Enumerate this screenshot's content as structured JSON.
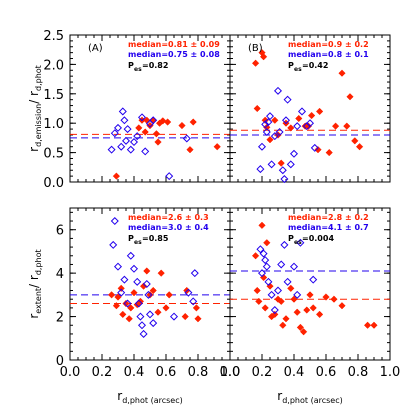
{
  "colors": {
    "red": "#ff2200",
    "blue": "#2200ee",
    "black": "#000000"
  },
  "chart_data": [
    {
      "type": "scatter",
      "panel": "A",
      "label": "(A)",
      "ylabel_main": "r",
      "ylabel_sub": "d,emission",
      "ylabel_div": "/ r",
      "ylabel_sub2": "d,phot",
      "xlabel": "",
      "xlim": [
        0.0,
        1.0
      ],
      "ylim": [
        0.0,
        2.5
      ],
      "xticks": [
        "0.0",
        "0.2",
        "0.4",
        "0.6",
        "0.8",
        "1.0"
      ],
      "yticks": [
        "0.0",
        "0.5",
        "1.0",
        "1.5",
        "2.0",
        "2.5"
      ],
      "show_xticklabels": false,
      "annotations": {
        "red": "median=0.81 ± 0.09",
        "blue": "median=0.75 ± 0.08",
        "p_main": "P",
        "p_sub": "es",
        "p_val": "=0.82"
      },
      "median_lines": {
        "red": 0.81,
        "blue": 0.75
      },
      "series": [
        {
          "name": "",
          "color": "red",
          "marker": "filled-diamond",
          "points": [
            [
              0.29,
              0.1
            ],
            [
              0.43,
              0.92
            ],
            [
              0.45,
              1.05
            ],
            [
              0.47,
              0.85
            ],
            [
              0.48,
              1.05
            ],
            [
              0.5,
              0.96
            ],
            [
              0.52,
              1.05
            ],
            [
              0.54,
              0.82
            ],
            [
              0.56,
              1.0
            ],
            [
              0.58,
              1.04
            ],
            [
              0.61,
              1.02
            ],
            [
              0.7,
              0.96
            ],
            [
              0.75,
              0.55
            ],
            [
              0.77,
              1.02
            ],
            [
              0.92,
              0.6
            ],
            [
              0.55,
              0.68
            ]
          ]
        },
        {
          "name": "",
          "color": "blue",
          "marker": "open-diamond",
          "points": [
            [
              0.26,
              0.55
            ],
            [
              0.28,
              0.83
            ],
            [
              0.3,
              0.92
            ],
            [
              0.32,
              0.6
            ],
            [
              0.33,
              1.2
            ],
            [
              0.34,
              1.05
            ],
            [
              0.35,
              0.7
            ],
            [
              0.36,
              0.9
            ],
            [
              0.38,
              0.55
            ],
            [
              0.4,
              0.68
            ],
            [
              0.42,
              0.78
            ],
            [
              0.45,
              1.1
            ],
            [
              0.47,
              0.52
            ],
            [
              0.5,
              0.99
            ],
            [
              0.52,
              1.05
            ],
            [
              0.62,
              0.1
            ],
            [
              0.73,
              0.74
            ]
          ]
        }
      ]
    },
    {
      "type": "scatter",
      "panel": "B",
      "label": "(B)",
      "ylabel_main": "",
      "ylabel_sub": "",
      "ylabel_div": "",
      "ylabel_sub2": "",
      "xlabel": "",
      "xlim": [
        0.0,
        1.0
      ],
      "ylim": [
        0.0,
        2.5
      ],
      "xticks": [
        "0.0",
        "0.2",
        "0.4",
        "0.6",
        "0.8",
        "1.0"
      ],
      "yticks": [
        "0.0",
        "0.5",
        "1.0",
        "1.5",
        "2.0",
        "2.5"
      ],
      "show_xticklabels": false,
      "show_yticklabels": false,
      "annotations": {
        "red": "median=0.9 ± 0.2",
        "blue": "median=0.8 ± 0.1",
        "p_main": "P",
        "p_sub": "es",
        "p_val": "=0.42"
      },
      "median_lines": {
        "red": 0.88,
        "blue": 0.8
      },
      "series": [
        {
          "name": "",
          "color": "red",
          "marker": "filled-diamond",
          "points": [
            [
              0.16,
              2.02
            ],
            [
              0.17,
              1.25
            ],
            [
              0.2,
              2.2
            ],
            [
              0.21,
              2.13
            ],
            [
              0.22,
              1.05
            ],
            [
              0.23,
              0.93
            ],
            [
              0.25,
              0.72
            ],
            [
              0.28,
              1.05
            ],
            [
              0.3,
              0.8
            ],
            [
              0.32,
              0.32
            ],
            [
              0.35,
              1.0
            ],
            [
              0.38,
              0.92
            ],
            [
              0.43,
              1.08
            ],
            [
              0.47,
              0.95
            ],
            [
              0.49,
              0.95
            ],
            [
              0.51,
              1.13
            ],
            [
              0.55,
              0.55
            ],
            [
              0.56,
              1.2
            ],
            [
              0.62,
              0.5
            ],
            [
              0.66,
              0.95
            ],
            [
              0.7,
              1.85
            ],
            [
              0.73,
              0.95
            ],
            [
              0.75,
              1.45
            ],
            [
              0.78,
              0.7
            ],
            [
              0.81,
              0.6
            ]
          ]
        },
        {
          "name": "",
          "color": "blue",
          "marker": "open-diamond",
          "points": [
            [
              0.19,
              0.22
            ],
            [
              0.2,
              0.6
            ],
            [
              0.22,
              0.98
            ],
            [
              0.23,
              0.85
            ],
            [
              0.24,
              1.02
            ],
            [
              0.25,
              1.12
            ],
            [
              0.26,
              0.3
            ],
            [
              0.28,
              0.78
            ],
            [
              0.3,
              1.55
            ],
            [
              0.31,
              0.85
            ],
            [
              0.33,
              0.2
            ],
            [
              0.34,
              0.05
            ],
            [
              0.35,
              1.05
            ],
            [
              0.36,
              1.4
            ],
            [
              0.38,
              0.3
            ],
            [
              0.4,
              0.48
            ],
            [
              0.42,
              0.95
            ],
            [
              0.45,
              1.2
            ],
            [
              0.48,
              0.95
            ],
            [
              0.5,
              1.0
            ],
            [
              0.53,
              0.58
            ]
          ]
        }
      ]
    },
    {
      "type": "scatter",
      "panel": "C",
      "label": "",
      "ylabel_main": "r",
      "ylabel_sub": "extent",
      "ylabel_div": "/ r",
      "ylabel_sub2": "d,phot",
      "xlabel_main": "r",
      "xlabel_sub": "d,phot",
      "xlabel_unit": "(arcsec)",
      "xlim": [
        0.0,
        1.0
      ],
      "ylim": [
        0,
        7
      ],
      "xticks": [
        "0.0",
        "0.2",
        "0.4",
        "0.6",
        "0.8",
        "1.0"
      ],
      "yticks": [
        "0",
        "2",
        "4",
        "6"
      ],
      "show_xticklabels": true,
      "annotations": {
        "red": "median=2.6 ± 0.3",
        "blue": "median=3.0 ± 0.4",
        "p_main": "P",
        "p_sub": "es",
        "p_val": "=0.85"
      },
      "median_lines": {
        "red": 2.6,
        "blue": 3.0
      },
      "series": [
        {
          "name": "",
          "color": "red",
          "marker": "filled-diamond",
          "points": [
            [
              0.26,
              3.0
            ],
            [
              0.29,
              2.5
            ],
            [
              0.3,
              2.9
            ],
            [
              0.32,
              3.3
            ],
            [
              0.33,
              2.1
            ],
            [
              0.35,
              2.6
            ],
            [
              0.37,
              1.9
            ],
            [
              0.38,
              2.4
            ],
            [
              0.4,
              3.1
            ],
            [
              0.42,
              2.55
            ],
            [
              0.44,
              2.7
            ],
            [
              0.46,
              3.4
            ],
            [
              0.48,
              4.1
            ],
            [
              0.5,
              3.0
            ],
            [
              0.52,
              3.2
            ],
            [
              0.55,
              2.2
            ],
            [
              0.57,
              4.0
            ],
            [
              0.6,
              2.4
            ],
            [
              0.62,
              3.0
            ],
            [
              0.72,
              2.0
            ],
            [
              0.73,
              3.2
            ],
            [
              0.79,
              2.4
            ],
            [
              0.8,
              1.9
            ]
          ]
        },
        {
          "name": "",
          "color": "blue",
          "marker": "open-diamond",
          "points": [
            [
              0.27,
              5.3
            ],
            [
              0.28,
              6.4
            ],
            [
              0.3,
              4.3
            ],
            [
              0.32,
              3.1
            ],
            [
              0.34,
              3.7
            ],
            [
              0.36,
              2.6
            ],
            [
              0.38,
              4.8
            ],
            [
              0.4,
              4.2
            ],
            [
              0.42,
              3.6
            ],
            [
              0.43,
              2.6
            ],
            [
              0.44,
              2.0
            ],
            [
              0.45,
              1.6
            ],
            [
              0.46,
              1.2
            ],
            [
              0.48,
              3.5
            ],
            [
              0.49,
              3.0
            ],
            [
              0.5,
              2.1
            ],
            [
              0.52,
              1.7
            ],
            [
              0.65,
              2.0
            ],
            [
              0.74,
              3.1
            ],
            [
              0.77,
              2.7
            ],
            [
              0.78,
              4.0
            ]
          ]
        }
      ]
    },
    {
      "type": "scatter",
      "panel": "D",
      "label": "",
      "ylabel_main": "",
      "ylabel_sub": "",
      "ylabel_div": "",
      "ylabel_sub2": "",
      "xlabel_main": "r",
      "xlabel_sub": "d,phot",
      "xlabel_unit": "(arcsec)",
      "xlim": [
        0.0,
        1.0
      ],
      "ylim": [
        0,
        7
      ],
      "xticks": [
        "0.0",
        "0.2",
        "0.4",
        "0.6",
        "0.8",
        "1.0"
      ],
      "yticks": [
        "0",
        "2",
        "4",
        "6"
      ],
      "show_xticklabels": true,
      "show_yticklabels": false,
      "annotations": {
        "red": "median=2.8 ± 0.2",
        "blue": "median=4.1 ± 0.7",
        "p_main": "P",
        "p_sub": "es",
        "p_val": "=0.004"
      },
      "median_lines": {
        "red": 2.8,
        "blue": 4.1
      },
      "series": [
        {
          "name": "",
          "color": "red",
          "marker": "filled-diamond",
          "points": [
            [
              0.16,
              4.8
            ],
            [
              0.17,
              3.2
            ],
            [
              0.18,
              2.7
            ],
            [
              0.2,
              6.2
            ],
            [
              0.21,
              3.8
            ],
            [
              0.22,
              2.4
            ],
            [
              0.23,
              5.4
            ],
            [
              0.25,
              3.4
            ],
            [
              0.26,
              2.0
            ],
            [
              0.28,
              2.1
            ],
            [
              0.3,
              2.8
            ],
            [
              0.32,
              2.7
            ],
            [
              0.33,
              1.6
            ],
            [
              0.35,
              1.9
            ],
            [
              0.38,
              3.3
            ],
            [
              0.4,
              2.8
            ],
            [
              0.42,
              2.2
            ],
            [
              0.44,
              1.5
            ],
            [
              0.46,
              1.3
            ],
            [
              0.48,
              2.3
            ],
            [
              0.5,
              3.0
            ],
            [
              0.52,
              2.4
            ],
            [
              0.56,
              2.1
            ],
            [
              0.6,
              2.9
            ],
            [
              0.65,
              2.8
            ],
            [
              0.7,
              2.5
            ],
            [
              0.86,
              1.6
            ],
            [
              0.9,
              1.6
            ]
          ]
        },
        {
          "name": "",
          "color": "blue",
          "marker": "open-diamond",
          "points": [
            [
              0.19,
              5.1
            ],
            [
              0.2,
              4.0
            ],
            [
              0.21,
              4.9
            ],
            [
              0.22,
              4.6
            ],
            [
              0.23,
              4.3
            ],
            [
              0.24,
              3.6
            ],
            [
              0.26,
              3.0
            ],
            [
              0.28,
              2.3
            ],
            [
              0.3,
              3.2
            ],
            [
              0.32,
              4.4
            ],
            [
              0.34,
              5.3
            ],
            [
              0.36,
              3.6
            ],
            [
              0.4,
              4.3
            ],
            [
              0.42,
              3.0
            ],
            [
              0.44,
              5.4
            ],
            [
              0.52,
              3.7
            ]
          ]
        }
      ]
    }
  ]
}
